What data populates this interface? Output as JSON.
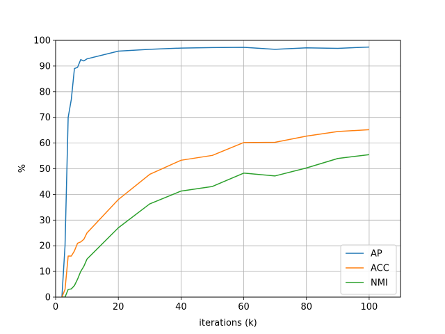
{
  "chart_data": {
    "type": "line",
    "title": "",
    "xlabel": "iterations (k)",
    "ylabel": "%",
    "xlim": [
      0,
      110
    ],
    "ylim": [
      0,
      100
    ],
    "xticks": [
      0,
      20,
      40,
      60,
      80,
      100
    ],
    "yticks": [
      0,
      10,
      20,
      30,
      40,
      50,
      60,
      70,
      80,
      90,
      100
    ],
    "grid": true,
    "legend_position": "lower-right",
    "series": [
      {
        "name": "AP",
        "color": "#1f77b4",
        "x": [
          2,
          3,
          4,
          5,
          6,
          7,
          8,
          9,
          10,
          20,
          30,
          40,
          50,
          60,
          70,
          80,
          90,
          100
        ],
        "y": [
          0,
          20,
          70,
          77,
          89,
          89.5,
          92.5,
          92,
          92.8,
          95.8,
          96.5,
          97,
          97.2,
          97.3,
          96.5,
          97.1,
          96.9,
          97.4
        ]
      },
      {
        "name": "ACC",
        "color": "#ff7f0e",
        "x": [
          2,
          3,
          4,
          5,
          6,
          7,
          8,
          9,
          10,
          20,
          30,
          40,
          50,
          60,
          70,
          80,
          90,
          100
        ],
        "y": [
          0,
          3,
          16,
          16,
          18,
          21,
          21.5,
          22.5,
          25,
          38,
          47.8,
          53.3,
          55.2,
          60.2,
          60.3,
          62.7,
          64.5,
          65.2
        ]
      },
      {
        "name": "NMI",
        "color": "#2ca02c",
        "x": [
          2,
          3,
          4,
          5,
          6,
          7,
          8,
          9,
          10,
          20,
          30,
          40,
          50,
          60,
          70,
          80,
          90,
          100
        ],
        "y": [
          0,
          0,
          3,
          3.2,
          4.5,
          7,
          10,
          12,
          14.8,
          27,
          36.3,
          41.3,
          43.1,
          48.3,
          47.2,
          50.3,
          54,
          55.5
        ]
      }
    ]
  }
}
